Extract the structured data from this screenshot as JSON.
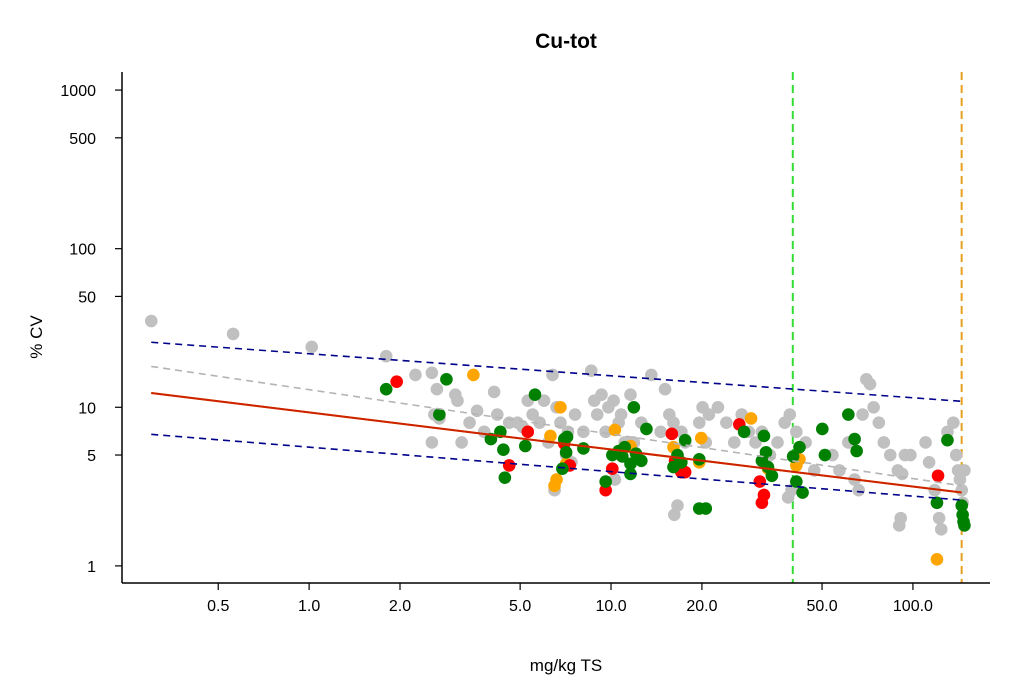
{
  "chart_data": {
    "type": "scatter",
    "title": "Cu-tot",
    "xlabel": "mg/kg TS",
    "ylabel": "% CV",
    "x_scale": "log",
    "y_scale": "log",
    "xlim": [
      0.24,
      180
    ],
    "ylim": [
      0.78,
      1300
    ],
    "x_ticks": [
      {
        "value": 0.5,
        "label": "0.5"
      },
      {
        "value": 1,
        "label": "1.0"
      },
      {
        "value": 2,
        "label": "2.0"
      },
      {
        "value": 5,
        "label": "5.0"
      },
      {
        "value": 10,
        "label": "10.0"
      },
      {
        "value": 20,
        "label": "20.0"
      },
      {
        "value": 50,
        "label": "50.0"
      },
      {
        "value": 100,
        "label": "100.0"
      }
    ],
    "y_ticks": [
      {
        "value": 1,
        "label": "1"
      },
      {
        "value": 5,
        "label": "5"
      },
      {
        "value": 10,
        "label": "10"
      },
      {
        "value": 50,
        "label": "50"
      },
      {
        "value": 100,
        "label": "100"
      },
      {
        "value": 500,
        "label": "500"
      },
      {
        "value": 1000,
        "label": "1000"
      }
    ],
    "colors": {
      "gray": "#c0c0c0",
      "green": "#008000",
      "orange": "#ffa500",
      "red": "#ff0000",
      "blue_dash": "#00008b",
      "gray_dash": "#b4b4b4",
      "fit_orange": "#ffa500",
      "fit_red": "#cc2200",
      "vline_green": "#33dd33",
      "vline_orange": "#e6a020"
    },
    "vertical_lines": [
      {
        "x": 40,
        "color": "#33dd33",
        "style": "dashed"
      },
      {
        "x": 145,
        "color": "#e6a020",
        "style": "dashed"
      }
    ],
    "trend_lines": [
      {
        "name": "upper-dashed",
        "x": [
          0.3,
          145
        ],
        "y": [
          25.7,
          10.9
        ],
        "color": "#00008b",
        "style": "dashed"
      },
      {
        "name": "gray-dashed",
        "x": [
          0.3,
          145
        ],
        "y": [
          18.1,
          3.2
        ],
        "color": "#b4b4b4",
        "style": "dashed"
      },
      {
        "name": "lower-dashed",
        "x": [
          0.3,
          145
        ],
        "y": [
          6.75,
          2.6
        ],
        "color": "#00008b",
        "style": "dashed"
      },
      {
        "name": "fit-orange",
        "x": [
          0.3,
          145
        ],
        "y": [
          12.3,
          2.9
        ],
        "color": "#ffa500",
        "style": "solid"
      },
      {
        "name": "fit-red",
        "x": [
          0.3,
          145
        ],
        "y": [
          12.3,
          2.9
        ],
        "color": "#cc2200",
        "style": "solid"
      }
    ],
    "series": [
      {
        "color": "gray",
        "points": [
          [
            0.3,
            35
          ],
          [
            0.56,
            29
          ],
          [
            1.02,
            24
          ],
          [
            1.8,
            21
          ],
          [
            2.25,
            16
          ],
          [
            2.55,
            16.5
          ],
          [
            2.65,
            13
          ],
          [
            2.6,
            9
          ],
          [
            2.7,
            8.5
          ],
          [
            2.55,
            6
          ],
          [
            3.05,
            12
          ],
          [
            3.1,
            11
          ],
          [
            3.2,
            6
          ],
          [
            3.4,
            8
          ],
          [
            3.6,
            9.5
          ],
          [
            3.8,
            7
          ],
          [
            4.1,
            12.5
          ],
          [
            4.2,
            9
          ],
          [
            4.6,
            8
          ],
          [
            4.9,
            8
          ],
          [
            5.1,
            7.5
          ],
          [
            5.3,
            11
          ],
          [
            5.5,
            9
          ],
          [
            5.8,
            8
          ],
          [
            6.0,
            11
          ],
          [
            6.2,
            6
          ],
          [
            6.4,
            16
          ],
          [
            6.6,
            10
          ],
          [
            6.8,
            8
          ],
          [
            6.5,
            3
          ],
          [
            7.1,
            5
          ],
          [
            7.2,
            7
          ],
          [
            7.4,
            4.5
          ],
          [
            7.6,
            9
          ],
          [
            8.1,
            7
          ],
          [
            8.6,
            17
          ],
          [
            8.8,
            11
          ],
          [
            9.0,
            9
          ],
          [
            9.3,
            12
          ],
          [
            9.6,
            7
          ],
          [
            9.8,
            10
          ],
          [
            10.2,
            11
          ],
          [
            10.3,
            3.5
          ],
          [
            10.6,
            8
          ],
          [
            10.8,
            9
          ],
          [
            11.1,
            6
          ],
          [
            11.6,
            12
          ],
          [
            11.9,
            6
          ],
          [
            12.6,
            8
          ],
          [
            13.6,
            16
          ],
          [
            14.6,
            7
          ],
          [
            15.1,
            13
          ],
          [
            15.6,
            9
          ],
          [
            16.1,
            8
          ],
          [
            16.6,
            5
          ],
          [
            17.1,
            7
          ],
          [
            17.6,
            6
          ],
          [
            16.2,
            2.1
          ],
          [
            16.6,
            2.4
          ],
          [
            19.6,
            8
          ],
          [
            20.1,
            10
          ],
          [
            20.6,
            6
          ],
          [
            21.1,
            9
          ],
          [
            22.6,
            10
          ],
          [
            24.1,
            8
          ],
          [
            25.6,
            6
          ],
          [
            27.1,
            9
          ],
          [
            28.6,
            7
          ],
          [
            30.1,
            6
          ],
          [
            31.6,
            7
          ],
          [
            33.6,
            5
          ],
          [
            35.6,
            6
          ],
          [
            37.6,
            8
          ],
          [
            39.1,
            9
          ],
          [
            39.6,
            3
          ],
          [
            38.6,
            2.7
          ],
          [
            41.1,
            7
          ],
          [
            44.1,
            6
          ],
          [
            47.1,
            4
          ],
          [
            54.1,
            5
          ],
          [
            57.1,
            4
          ],
          [
            61.1,
            6
          ],
          [
            64.1,
            3.5
          ],
          [
            66.1,
            3
          ],
          [
            68.1,
            9
          ],
          [
            70.1,
            15
          ],
          [
            72.1,
            14
          ],
          [
            74.1,
            10
          ],
          [
            77.1,
            8
          ],
          [
            80.1,
            6
          ],
          [
            84.1,
            5
          ],
          [
            89.1,
            4
          ],
          [
            92.1,
            3.8
          ],
          [
            94.1,
            5
          ],
          [
            98.1,
            5
          ],
          [
            91.1,
            2
          ],
          [
            90.1,
            1.8
          ],
          [
            110.1,
            6
          ],
          [
            113.1,
            4.5
          ],
          [
            118.1,
            3
          ],
          [
            120.1,
            2.5
          ],
          [
            122.1,
            2
          ],
          [
            124.1,
            1.7
          ],
          [
            130.1,
            7
          ],
          [
            136.1,
            8
          ],
          [
            139.1,
            5
          ],
          [
            141.1,
            4
          ],
          [
            143.1,
            3.5
          ],
          [
            145.1,
            3
          ],
          [
            146.1,
            2.5
          ],
          [
            148.1,
            4
          ]
        ]
      },
      {
        "color": "green",
        "points": [
          [
            1.8,
            13
          ],
          [
            2.7,
            9
          ],
          [
            2.85,
            15
          ],
          [
            4.0,
            6.3
          ],
          [
            4.3,
            7
          ],
          [
            4.4,
            5.4
          ],
          [
            4.45,
            3.6
          ],
          [
            5.2,
            5.7
          ],
          [
            5.6,
            12
          ],
          [
            6.9,
            4.1
          ],
          [
            7.0,
            6.3
          ],
          [
            7.1,
            5.2
          ],
          [
            7.15,
            6.5
          ],
          [
            8.1,
            5.5
          ],
          [
            9.6,
            3.4
          ],
          [
            10.1,
            5
          ],
          [
            10.6,
            5.3
          ],
          [
            10.9,
            4.9
          ],
          [
            11.1,
            5.6
          ],
          [
            11.6,
            3.8
          ],
          [
            11.9,
            10
          ],
          [
            11.6,
            4.4
          ],
          [
            12.1,
            5.1
          ],
          [
            12.6,
            4.6
          ],
          [
            13.1,
            7.3
          ],
          [
            16.1,
            4.2
          ],
          [
            16.6,
            5
          ],
          [
            17.1,
            4.5
          ],
          [
            17.6,
            6.2
          ],
          [
            19.6,
            4.7
          ],
          [
            19.6,
            2.3
          ],
          [
            20.6,
            2.3
          ],
          [
            27.6,
            7
          ],
          [
            31.6,
            4.6
          ],
          [
            32.1,
            6.6
          ],
          [
            32.6,
            5.2
          ],
          [
            33.1,
            4.2
          ],
          [
            34.1,
            3.7
          ],
          [
            40.1,
            4.9
          ],
          [
            41.1,
            3.4
          ],
          [
            42.1,
            5.6
          ],
          [
            43.1,
            2.9
          ],
          [
            50.1,
            7.3
          ],
          [
            51.1,
            5
          ],
          [
            61.1,
            9
          ],
          [
            64.1,
            6.3
          ],
          [
            65.1,
            5.3
          ],
          [
            120.1,
            2.5
          ],
          [
            130.1,
            6.2
          ],
          [
            145.1,
            2.4
          ],
          [
            146.1,
            2.1
          ],
          [
            147.1,
            1.9
          ],
          [
            148.1,
            1.8
          ]
        ]
      },
      {
        "color": "orange",
        "points": [
          [
            3.5,
            16
          ],
          [
            6.3,
            6.6
          ],
          [
            6.5,
            3.2
          ],
          [
            6.6,
            3.5
          ],
          [
            6.8,
            10
          ],
          [
            7.1,
            4.4
          ],
          [
            10.3,
            7.2
          ],
          [
            11.6,
            5.7
          ],
          [
            16.1,
            5.6
          ],
          [
            17.1,
            4.1
          ],
          [
            19.6,
            4.5
          ],
          [
            19.9,
            6.4
          ],
          [
            29.1,
            8.5
          ],
          [
            33.1,
            4.1
          ],
          [
            41.1,
            4.3
          ],
          [
            42.1,
            4.7
          ],
          [
            120.1,
            1.1
          ]
        ]
      },
      {
        "color": "red",
        "points": [
          [
            1.95,
            14.5
          ],
          [
            4.6,
            4.3
          ],
          [
            5.3,
            7
          ],
          [
            7.0,
            5.9
          ],
          [
            7.3,
            4.3
          ],
          [
            9.6,
            3
          ],
          [
            10.1,
            4.1
          ],
          [
            15.9,
            6.8
          ],
          [
            16.3,
            4.6
          ],
          [
            17.1,
            3.9
          ],
          [
            17.6,
            3.9
          ],
          [
            26.6,
            7.8
          ],
          [
            31.1,
            3.4
          ],
          [
            31.6,
            2.5
          ],
          [
            32.1,
            2.8
          ],
          [
            121.1,
            3.7
          ]
        ]
      }
    ]
  }
}
